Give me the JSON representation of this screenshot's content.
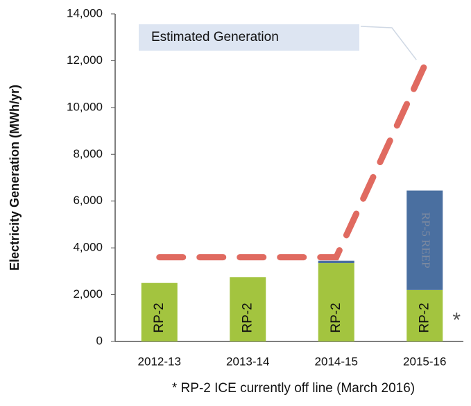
{
  "chart_data": {
    "type": "bar",
    "stacked": true,
    "y_label": "Electricity Generation (MWh/yr)",
    "categories": [
      "2012-13",
      "2013-14",
      "2014-15",
      "2015-16"
    ],
    "series": [
      {
        "name": "RP-2",
        "color": "#a3c43f",
        "values": [
          2500,
          2750,
          3350,
          2200
        ]
      },
      {
        "name": "RP-5 REEP",
        "color": "#4a6fa0",
        "values": [
          null,
          null,
          100,
          4250
        ]
      },
      {
        "name": "Estimated Generation",
        "type": "line",
        "color": "#e06a60",
        "values": [
          3600,
          3600,
          3600,
          11800
        ]
      }
    ],
    "ylim": [
      0,
      14000
    ],
    "yticks": [
      0,
      {
        "value": 2000,
        "label": "2,000"
      },
      {
        "value": 4000,
        "label": "4,000"
      },
      {
        "value": 6000,
        "label": "6,000"
      },
      {
        "value": 8000,
        "label": "8,000"
      },
      {
        "value": 10000,
        "label": "10,000"
      },
      {
        "value": 12000,
        "label": "12,000"
      },
      {
        "value": 14000,
        "label": "14,000"
      }
    ],
    "annotation": "*",
    "footnote": "* RP-2 ICE currently off line (March 2016)"
  }
}
